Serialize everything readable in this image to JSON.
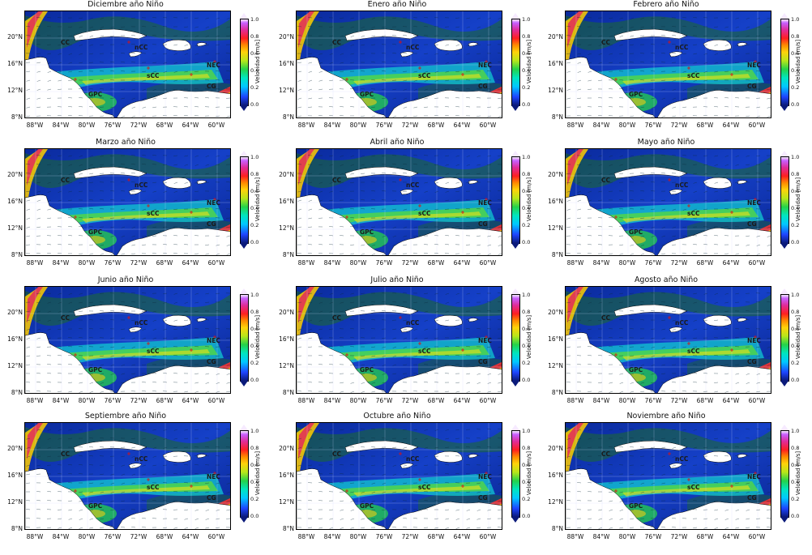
{
  "panels": [
    {
      "title": "Diciembre año Niño"
    },
    {
      "title": "Enero año Niño"
    },
    {
      "title": "Febrero año Niño"
    },
    {
      "title": "Marzo año Niño"
    },
    {
      "title": "Abril año Niño"
    },
    {
      "title": "Mayo año Niño"
    },
    {
      "title": "Junio año Niño"
    },
    {
      "title": "Julio año Niño"
    },
    {
      "title": "Agosto año Niño"
    },
    {
      "title": "Septiembre año Niño"
    },
    {
      "title": "Octubre año Niño"
    },
    {
      "title": "Noviembre año Niño"
    }
  ],
  "axes": {
    "lat_labels": [
      "20°N",
      "16°N",
      "12°N",
      "8°N"
    ],
    "lon_labels": [
      "88°W",
      "84°W",
      "80°W",
      "76°W",
      "72°W",
      "68°W",
      "64°W",
      "60°W"
    ]
  },
  "colorbar": {
    "label": "Velocidad [m/s]",
    "ticks": [
      "1.0",
      "0.8",
      "0.6",
      "0.4",
      "0.2",
      "0.0"
    ],
    "colors": [
      "#0b1a7a",
      "#1e45ff",
      "#00c8ff",
      "#25d24a",
      "#ffd20a",
      "#ff2020",
      "#c860ff"
    ]
  },
  "currents": [
    "CC",
    "nCC",
    "sCC",
    "NEC",
    "GPC",
    "CG"
  ]
}
